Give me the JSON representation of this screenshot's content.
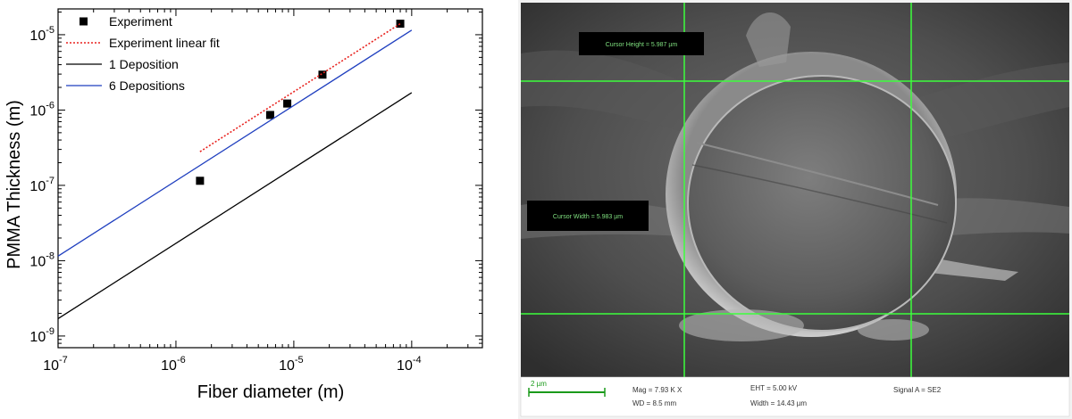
{
  "chart_data": {
    "type": "scatter",
    "xlabel": "Fiber diameter (m)",
    "ylabel": "PMMA Thickness (m)",
    "x_scale": "log",
    "y_scale": "log",
    "xlim": [
      1e-07,
      0.000398
    ],
    "ylim": [
      7e-10,
      2.2e-05
    ],
    "x_ticks": [
      {
        "value": 1e-07,
        "base": "10",
        "exp": "-7"
      },
      {
        "value": 1e-06,
        "base": "10",
        "exp": "-6"
      },
      {
        "value": 1e-05,
        "base": "10",
        "exp": "-5"
      },
      {
        "value": 0.0001,
        "base": "10",
        "exp": "-4"
      }
    ],
    "y_ticks": [
      {
        "value": 1e-09,
        "base": "10",
        "exp": "-9"
      },
      {
        "value": 1e-08,
        "base": "10",
        "exp": "-8"
      },
      {
        "value": 1e-07,
        "base": "10",
        "exp": "-7"
      },
      {
        "value": 1e-06,
        "base": "10",
        "exp": "-6"
      },
      {
        "value": 1e-05,
        "base": "10",
        "exp": "-5"
      }
    ],
    "grid": false,
    "legend_position": "top-left",
    "series": [
      {
        "name": "Experiment",
        "kind": "markers",
        "color": "#000000",
        "x": [
          1.6e-06,
          6.3e-06,
          8.8e-06,
          1.75e-05,
          8e-05
        ],
        "y": [
          1.15e-07,
          8.6e-07,
          1.22e-06,
          2.95e-06,
          1.4e-05
        ]
      },
      {
        "name": "Experiment linear fit",
        "kind": "dotted-line",
        "color": "#e8221e",
        "x": [
          1.6e-06,
          8e-05
        ],
        "y": [
          2.8e-07,
          1.4e-05
        ]
      },
      {
        "name": "1 Deposition",
        "kind": "line",
        "color": "#000000",
        "x": [
          1e-07,
          0.0001
        ],
        "y": [
          1.7e-09,
          1.7e-06
        ]
      },
      {
        "name": "6 Depositions",
        "kind": "line",
        "color": "#1f3fbf",
        "x": [
          1e-07,
          0.0001
        ],
        "y": [
          1.15e-08,
          1.15e-05
        ]
      }
    ]
  },
  "sem": {
    "cursor_height_label": "Cursor Height = 5.987 µm",
    "cursor_width_label": "Cursor Width = 5.983 µm",
    "scale_bar_label": "2 µm",
    "mag": "Mag =  7.93 K X",
    "wd": "WD =  8.5 mm",
    "eht": "EHT =  5.00 kV",
    "width": "Width = 14.43 µm",
    "signal": "Signal A = SE2",
    "overlay_color": "#3cff3c"
  }
}
